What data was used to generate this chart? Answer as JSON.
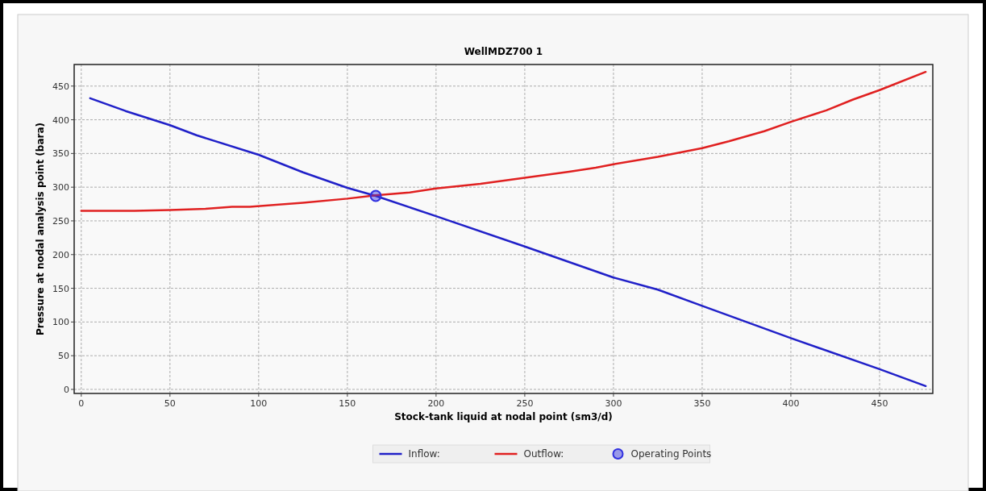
{
  "chart_data": {
    "type": "line",
    "title": "WellMDZ700 1",
    "xlabel": "Stock-tank liquid at nodal point (sm3/d)",
    "ylabel": "Pressure at nodal analysis point (bara)",
    "xlim": [
      -4,
      480
    ],
    "xticks": [
      0,
      50,
      100,
      150,
      200,
      250,
      300,
      350,
      400,
      450
    ],
    "ylim": [
      -6,
      482
    ],
    "yticks": [
      0,
      50,
      100,
      150,
      200,
      250,
      300,
      350,
      400,
      450
    ],
    "grid": true,
    "legend": "bottom",
    "series": [
      {
        "name": "Inflow:",
        "color": "#2020c8",
        "x": [
          5,
          25,
          50,
          65,
          100,
          125,
          150,
          166,
          200,
          250,
          300,
          325,
          350,
          400,
          450,
          476
        ],
        "values": [
          432,
          413,
          392,
          377,
          348,
          322,
          299,
          287,
          257,
          212,
          166,
          148,
          124,
          76,
          30,
          5
        ]
      },
      {
        "name": "Outflow:",
        "color": "#e02020",
        "x": [
          0,
          30,
          50,
          70,
          85,
          95,
          125,
          150,
          166,
          185,
          200,
          225,
          250,
          275,
          290,
          300,
          325,
          350,
          365,
          385,
          400,
          420,
          435,
          450,
          476
        ],
        "values": [
          265,
          265,
          266,
          268,
          271,
          271,
          277,
          283,
          288,
          292,
          298,
          305,
          314,
          323,
          329,
          334,
          345,
          358,
          368,
          383,
          397,
          414,
          430,
          444,
          471
        ]
      },
      {
        "name": "Operating Points",
        "type": "scatter",
        "marker": "circle",
        "color": "#3030e0",
        "x": [
          166
        ],
        "values": [
          287
        ]
      }
    ]
  }
}
